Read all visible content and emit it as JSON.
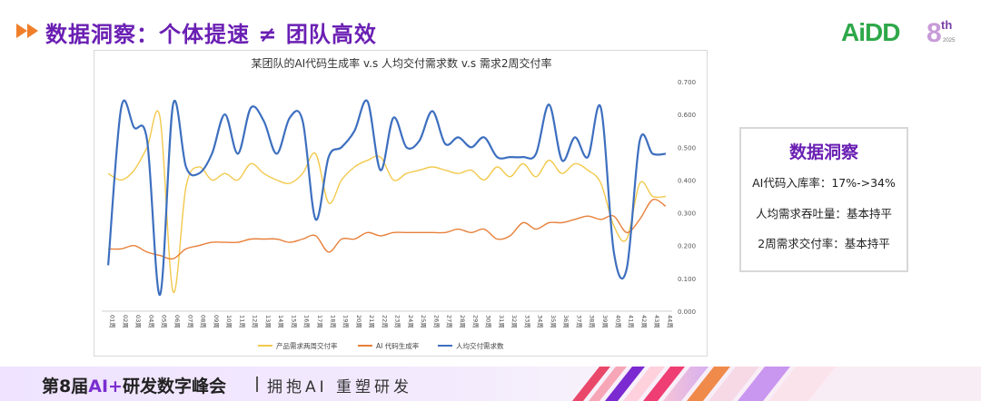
{
  "header": {
    "title": "数据洞察：个体提速 ≠ 团队高效",
    "logo_text": "AiDD",
    "logo_edition": "8",
    "logo_suffix": "th",
    "logo_year": "2025"
  },
  "insight": {
    "title": "数据洞察",
    "lines": [
      "AI代码入库率：17%->34%",
      "人均需求吞吐量：基本持平",
      "2周需求交付率：基本持平"
    ]
  },
  "footer": {
    "event_pre": "第8届",
    "event_ai": "AI+",
    "event_post": "研发数字峰会",
    "slogan": "拥抱AI 重塑研发"
  },
  "colors": {
    "accent": "#6a1fb3",
    "series_yellow": "#f2c94c",
    "series_orange": "#e8803a",
    "series_blue": "#3d6fbf",
    "logo_green": "#2ea84a",
    "logo_blue": "#2a62c9"
  },
  "chart_data": {
    "type": "line",
    "title": "某团队的AI代码生成率 v.s 人均交付需求数 v.s 需求2周交付率",
    "ylim": [
      0,
      0.7
    ],
    "y_ticks": [
      "0.000",
      "0.100",
      "0.200",
      "0.300",
      "0.400",
      "0.500",
      "0.600",
      "0.700"
    ],
    "grid": false,
    "legend_position": "bottom",
    "categories": [
      "01周",
      "02周",
      "03周",
      "04周",
      "05周",
      "06周",
      "07周",
      "08周",
      "09周",
      "10周",
      "11周",
      "12周",
      "13周",
      "14周",
      "15周",
      "16周",
      "17周",
      "18周",
      "19周",
      "20周",
      "21周",
      "22周",
      "23周",
      "24周",
      "25周",
      "26周",
      "27周",
      "28周",
      "29周",
      "30周",
      "31周",
      "32周",
      "33周",
      "34周",
      "35周",
      "36周",
      "37周",
      "38周",
      "39周",
      "40周",
      "41周",
      "42周",
      "43周",
      "44周"
    ],
    "series": [
      {
        "name": "产品需求两周交付率",
        "color": "#f2c94c",
        "values": [
          0.42,
          0.4,
          0.43,
          0.5,
          0.59,
          0.06,
          0.38,
          0.44,
          0.4,
          0.42,
          0.4,
          0.45,
          0.42,
          0.4,
          0.39,
          0.42,
          0.48,
          0.33,
          0.4,
          0.44,
          0.46,
          0.47,
          0.4,
          0.42,
          0.43,
          0.44,
          0.43,
          0.42,
          0.43,
          0.4,
          0.44,
          0.41,
          0.45,
          0.41,
          0.46,
          0.42,
          0.45,
          0.43,
          0.39,
          0.26,
          0.22,
          0.39,
          0.35,
          0.35
        ]
      },
      {
        "name": "AI 代码生成率",
        "color": "#e8803a",
        "values": [
          0.19,
          0.19,
          0.2,
          0.18,
          0.17,
          0.16,
          0.19,
          0.2,
          0.21,
          0.21,
          0.21,
          0.22,
          0.22,
          0.22,
          0.21,
          0.22,
          0.23,
          0.18,
          0.22,
          0.22,
          0.24,
          0.23,
          0.24,
          0.24,
          0.24,
          0.24,
          0.24,
          0.25,
          0.24,
          0.25,
          0.22,
          0.23,
          0.27,
          0.25,
          0.27,
          0.27,
          0.28,
          0.29,
          0.28,
          0.29,
          0.24,
          0.28,
          0.34,
          0.32
        ]
      },
      {
        "name": "人均交付需求数",
        "color": "#3d6fbf",
        "values": [
          0.14,
          0.62,
          0.56,
          0.52,
          0.05,
          0.63,
          0.44,
          0.42,
          0.48,
          0.6,
          0.48,
          0.62,
          0.58,
          0.48,
          0.59,
          0.58,
          0.28,
          0.47,
          0.5,
          0.55,
          0.64,
          0.43,
          0.59,
          0.5,
          0.52,
          0.61,
          0.51,
          0.53,
          0.5,
          0.53,
          0.47,
          0.47,
          0.47,
          0.48,
          0.63,
          0.46,
          0.53,
          0.47,
          0.62,
          0.18,
          0.13,
          0.52,
          0.48,
          0.48
        ]
      }
    ]
  }
}
